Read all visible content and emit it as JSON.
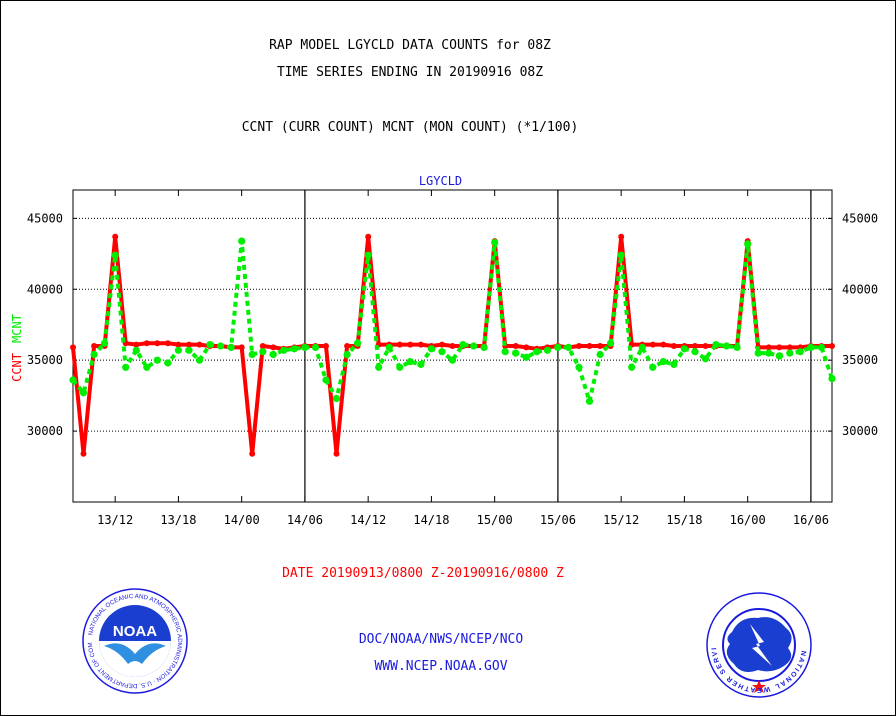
{
  "header": {
    "title": "RAP MODEL LGYCLD DATA COUNTS for 08Z",
    "subtitle": "TIME SERIES ENDING IN 20190916 08Z",
    "series_note": "CCNT (CURR COUNT) MCNT (MON COUNT) (*1/100)"
  },
  "footer": {
    "date_range": "DATE 20190913/0800 Z-20190916/0800 Z",
    "credit_line1": "DOC/NOAA/NWS/NCEP/NCO",
    "credit_line2": "WWW.NCEP.NOAA.GOV"
  },
  "logos": {
    "left": "NOAA",
    "right": "NATIONAL WEATHER SERVICE"
  },
  "chart_data": {
    "type": "line",
    "title": "LGYCLD",
    "ylabel_parts": [
      "CCNT",
      "MCNT"
    ],
    "ylim": [
      25000,
      47000
    ],
    "xlim": [
      0,
      72
    ],
    "yticks": [
      30000,
      35000,
      40000,
      45000
    ],
    "ytick_labels": [
      "30000",
      "35000",
      "40000",
      "45000"
    ],
    "xticks": [
      {
        "x": 4,
        "label": "13/12"
      },
      {
        "x": 10,
        "label": "13/18"
      },
      {
        "x": 16,
        "label": "14/00"
      },
      {
        "x": 22,
        "label": "14/06"
      },
      {
        "x": 28,
        "label": "14/12"
      },
      {
        "x": 34,
        "label": "14/18"
      },
      {
        "x": 40,
        "label": "15/00"
      },
      {
        "x": 46,
        "label": "15/06"
      },
      {
        "x": 52,
        "label": "15/12"
      },
      {
        "x": 58,
        "label": "15/18"
      },
      {
        "x": 64,
        "label": "16/00"
      },
      {
        "x": 70,
        "label": "16/06"
      }
    ],
    "day_boundaries": [
      22,
      46,
      70
    ],
    "grid": true,
    "colors": {
      "ccnt": "#ff0000",
      "mcnt": "#00ee00",
      "grid": "#000000",
      "title": "#1a1adf"
    },
    "series": [
      {
        "name": "CCNT",
        "x": [
          0,
          1,
          2,
          3,
          4,
          5,
          6,
          7,
          8,
          9,
          10,
          11,
          12,
          13,
          14,
          15,
          16,
          17,
          18,
          19,
          20,
          21,
          22,
          23,
          24,
          25,
          26,
          27,
          28,
          29,
          30,
          31,
          32,
          33,
          34,
          35,
          36,
          37,
          38,
          39,
          40,
          41,
          42,
          43,
          44,
          45,
          46,
          47,
          48,
          49,
          50,
          51,
          52,
          53,
          54,
          55,
          56,
          57,
          58,
          59,
          60,
          61,
          62,
          63,
          64,
          65,
          66,
          67,
          68,
          69,
          70,
          71,
          72
        ],
        "values": [
          35900,
          28400,
          36000,
          36000,
          43700,
          36200,
          36100,
          36200,
          36200,
          36200,
          36100,
          36100,
          36100,
          36000,
          36000,
          35900,
          35900,
          28400,
          36000,
          35900,
          35800,
          35900,
          36000,
          36000,
          36000,
          28400,
          36000,
          36000,
          43700,
          36100,
          36100,
          36100,
          36100,
          36100,
          36000,
          36100,
          36000,
          36000,
          36000,
          36000,
          43400,
          36000,
          36000,
          35900,
          35800,
          35900,
          36000,
          35900,
          36000,
          36000,
          36000,
          36000,
          43700,
          36100,
          36100,
          36100,
          36100,
          36000,
          36000,
          36000,
          36000,
          36000,
          36000,
          36000,
          43400,
          35900,
          35900,
          35900,
          35900,
          35900,
          36000,
          36000,
          36000
        ]
      },
      {
        "name": "MCNT",
        "x": [
          0,
          1,
          2,
          3,
          4,
          5,
          6,
          7,
          8,
          9,
          10,
          11,
          12,
          13,
          14,
          15,
          16,
          17,
          18,
          19,
          20,
          21,
          22,
          23,
          24,
          25,
          26,
          27,
          28,
          29,
          30,
          31,
          32,
          33,
          34,
          35,
          36,
          37,
          38,
          39,
          40,
          41,
          42,
          43,
          44,
          45,
          46,
          47,
          48,
          49,
          50,
          51,
          52,
          53,
          54,
          55,
          56,
          57,
          58,
          59,
          60,
          61,
          62,
          63,
          64,
          65,
          66,
          67,
          68,
          69,
          70,
          71,
          72
        ],
        "values": [
          33600,
          32700,
          35400,
          36200,
          42400,
          34500,
          35700,
          34500,
          35000,
          34800,
          35700,
          35700,
          35000,
          36100,
          36000,
          35900,
          43400,
          35400,
          35600,
          35400,
          35700,
          35800,
          35900,
          35900,
          33600,
          32300,
          35400,
          36200,
          42400,
          34500,
          35900,
          34500,
          34900,
          34700,
          35800,
          35600,
          35000,
          36100,
          36000,
          35900,
          43300,
          35600,
          35500,
          35200,
          35600,
          35700,
          35900,
          35900,
          34500,
          32100,
          35400,
          36200,
          42400,
          34500,
          35900,
          34500,
          34900,
          34700,
          35800,
          35600,
          35100,
          36100,
          36000,
          35900,
          43200,
          35500,
          35500,
          35300,
          35500,
          35600,
          35900,
          35900,
          33700
        ]
      }
    ]
  }
}
